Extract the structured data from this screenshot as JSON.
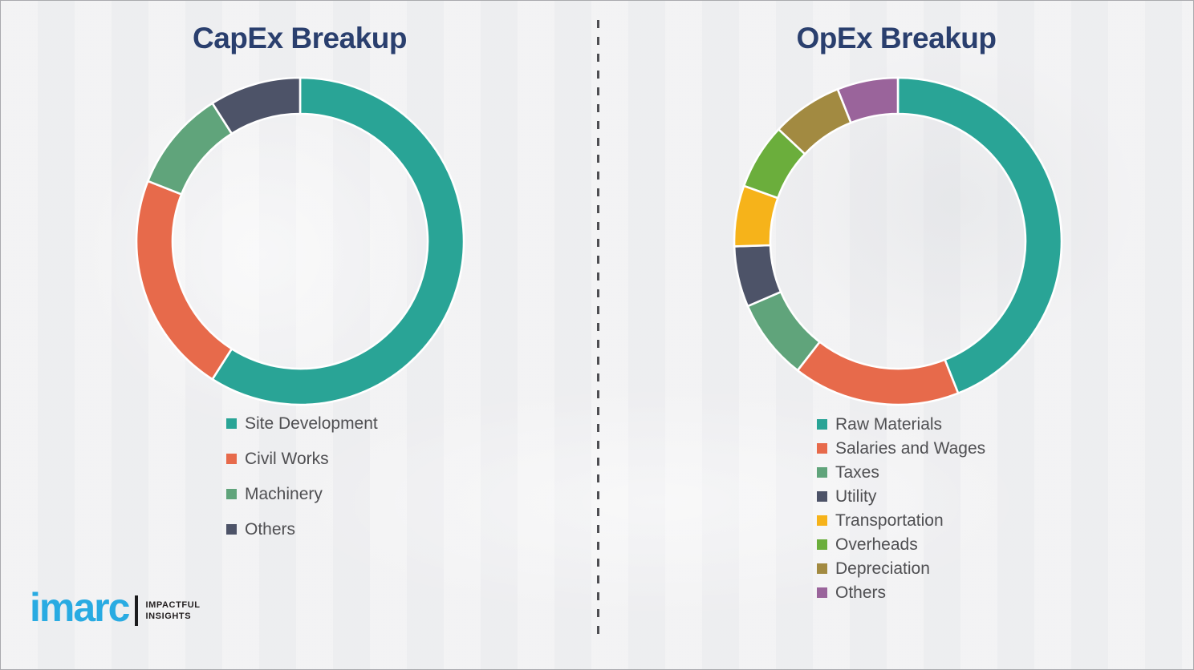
{
  "page": {
    "background_color": "#f1f1f3",
    "border_color": "#a9a9ad",
    "divider_color": "#4e4e52",
    "legend_text_color": "#4f4f52",
    "title_color": "#2a3f6e"
  },
  "chart_data": [
    {
      "id": "capex",
      "type": "donut",
      "title": "CapEx Breakup",
      "legend_position": "bottom",
      "segments": [
        {
          "label": "Site Development",
          "value": 59,
          "color": "#29a496"
        },
        {
          "label": "Civil Works",
          "value": 22,
          "color": "#e76a4b"
        },
        {
          "label": "Machinery",
          "value": 10,
          "color": "#60a47b"
        },
        {
          "label": "Others",
          "value": 9,
          "color": "#4d5368"
        }
      ]
    },
    {
      "id": "opex",
      "type": "donut",
      "title": "OpEx Breakup",
      "legend_position": "bottom",
      "segments": [
        {
          "label": "Raw Materials",
          "value": 44,
          "color": "#29a496"
        },
        {
          "label": "Salaries and Wages",
          "value": 16.5,
          "color": "#e76a4b"
        },
        {
          "label": "Taxes",
          "value": 8,
          "color": "#60a47b"
        },
        {
          "label": "Utility",
          "value": 6,
          "color": "#4d5368"
        },
        {
          "label": "Transportation",
          "value": 6,
          "color": "#f6b31a"
        },
        {
          "label": "Overheads",
          "value": 6.5,
          "color": "#6bae3c"
        },
        {
          "label": "Depreciation",
          "value": 7,
          "color": "#a28a41"
        },
        {
          "label": "Others",
          "value": 6,
          "color": "#9a649b"
        }
      ]
    }
  ],
  "logo": {
    "wordmark": "imarc",
    "tagline_line1": "IMPACTFUL",
    "tagline_line2": "INSIGHTS",
    "wordmark_color": "#29abe2",
    "tagline_color": "#231f20"
  }
}
